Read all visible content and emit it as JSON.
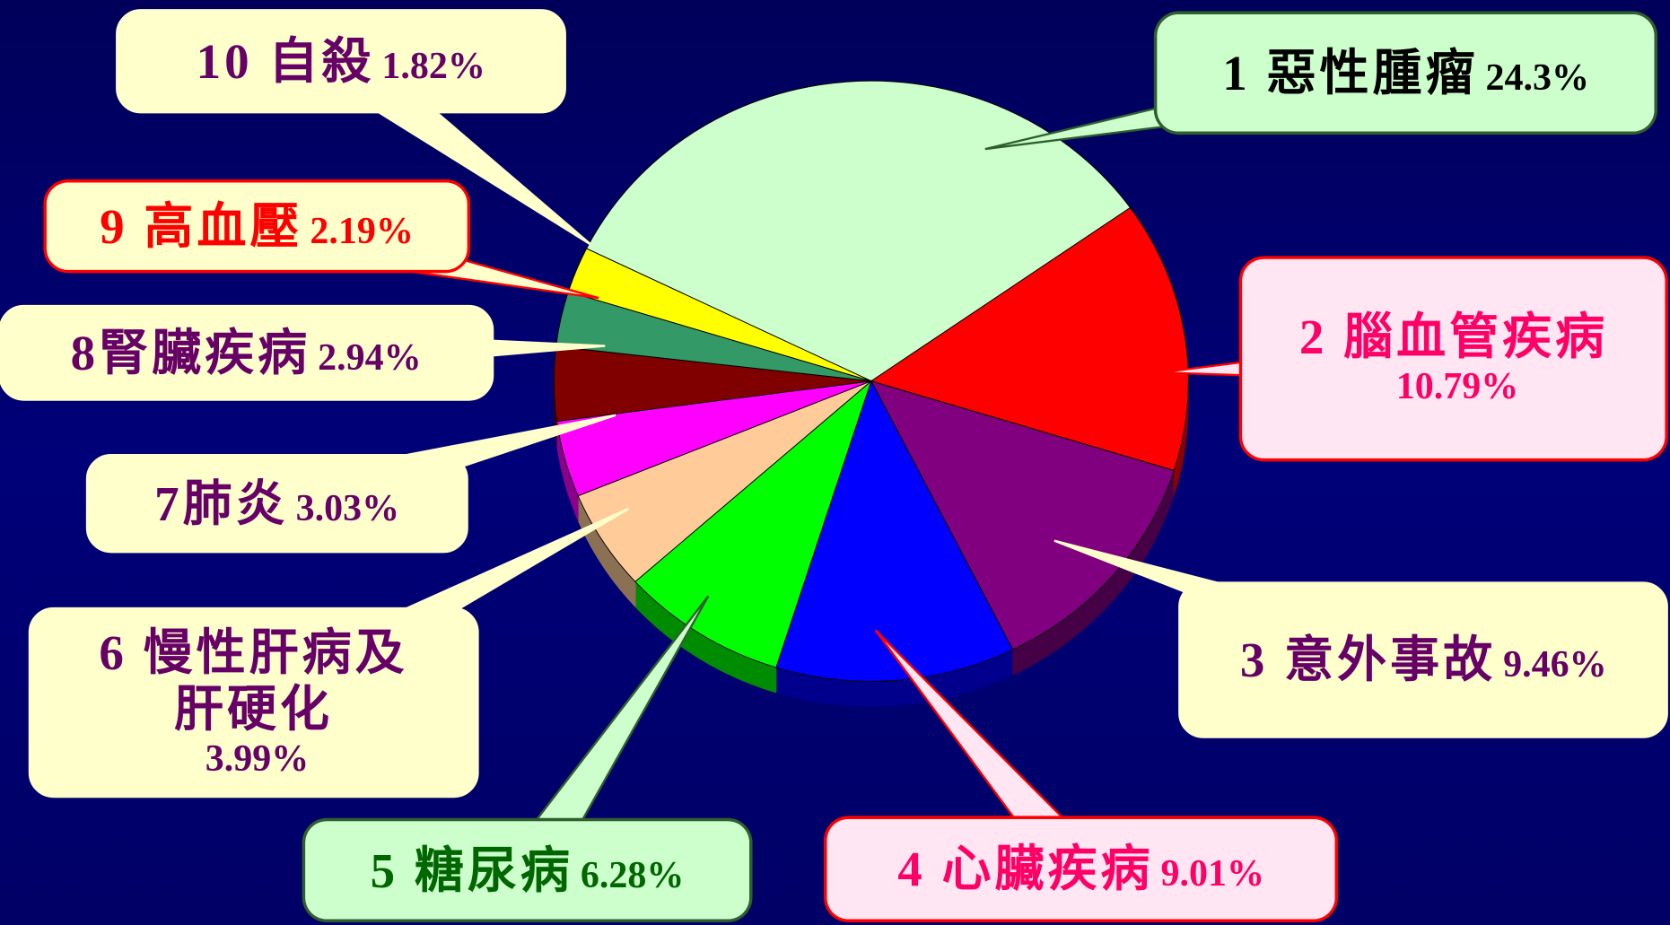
{
  "chart_data": {
    "type": "pie",
    "categories": [
      "1 惡性腫瘤",
      "2 腦血管疾病",
      "3 意外事故",
      "4 心臟疾病",
      "5 糖尿病",
      "6 慢性肝病及肝硬化",
      "7肺炎",
      "8腎臟疾病",
      "9 高血壓",
      "10 自殺"
    ],
    "values": [
      24.3,
      10.79,
      9.46,
      9.01,
      6.28,
      3.99,
      3.03,
      2.94,
      2.19,
      1.82
    ],
    "value_labels": [
      "24.3%",
      "10.79%",
      "9.46%",
      "9.01%",
      "6.28%",
      "3.99%",
      "3.03%",
      "2.94%",
      "2.19%",
      "1.82%"
    ],
    "colors": [
      "#ccffcc",
      "#ff0000",
      "#800080",
      "#0000ff",
      "#00ff00",
      "#ffcc99",
      "#ff00ff",
      "#800000",
      "#339966",
      "#ffff00"
    ]
  }
}
